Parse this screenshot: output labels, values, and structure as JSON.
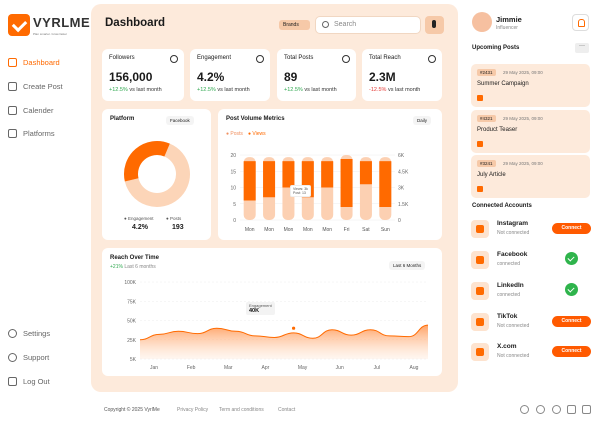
{
  "brand": {
    "name": "VYRLME",
    "tagline": "Plan smarter. Grow faster"
  },
  "nav": [
    {
      "label": "Dashboard",
      "active": true
    },
    {
      "label": "Create Post"
    },
    {
      "label": "Calender"
    },
    {
      "label": "Platforms"
    }
  ],
  "nav_bottom": [
    {
      "label": "Settings"
    },
    {
      "label": "Support"
    },
    {
      "label": "Log Out"
    }
  ],
  "header": {
    "title": "Dashboard",
    "brands_label": "Brands",
    "search_placeholder": "Search"
  },
  "stats": [
    {
      "label": "Followers",
      "value": "156,000",
      "delta": "+12.5%",
      "suffix": "vs last month",
      "icon": "users-icon"
    },
    {
      "label": "Engagement",
      "value": "4.2%",
      "delta": "+12.5%",
      "suffix": "vs last month",
      "icon": "heart-icon"
    },
    {
      "label": "Total Posts",
      "value": "89",
      "delta": "+12.5%",
      "suffix": "vs last month",
      "icon": "chat-icon"
    },
    {
      "label": "Total Reach",
      "value": "2.3M",
      "delta": "-12.5%",
      "suffix": "vs last month",
      "icon": "trophy-icon"
    }
  ],
  "platform": {
    "title": "Platform",
    "dropdown": "Facebook",
    "legend": [
      {
        "label": "Engagement",
        "value": "4.2%"
      },
      {
        "label": "Posts",
        "value": "193"
      }
    ]
  },
  "post_volume": {
    "title": "Post Volume Metrics",
    "dropdown": "Daily",
    "legend": [
      "Posts",
      "Views"
    ],
    "tooltip": [
      "Views: 3k",
      "Post: 13"
    ]
  },
  "reach": {
    "title": "Reach Over Time",
    "delta": "+21%",
    "subtitle": "Last 6 months",
    "dropdown": "Last 6 Months",
    "tooltip_label": "Engagement",
    "tooltip_value": "40K"
  },
  "chart_data": [
    {
      "type": "pie",
      "title": "Platform",
      "labels": [
        "Engagement",
        "Posts"
      ],
      "values": [
        65,
        35
      ],
      "colors": [
        "#fcd5b8",
        "#ff6a00"
      ]
    },
    {
      "type": "bar",
      "title": "Post Volume Metrics",
      "categories": [
        "Mon",
        "Mon",
        "Mon",
        "Mon",
        "Mon",
        "Fri",
        "Sat",
        "Sun"
      ],
      "series": [
        {
          "name": "Posts",
          "values": [
            14,
            13,
            10,
            13,
            10,
            16,
            9,
            16
          ]
        },
        {
          "name": "Views",
          "values": [
            5.8,
            5.8,
            5.8,
            5.8,
            5.8,
            6,
            5.8,
            5.8
          ]
        }
      ],
      "yticks_left": [
        "0",
        "5",
        "10",
        "15",
        "20"
      ],
      "yticks_right": [
        "0",
        "1.5K",
        "3K",
        "4.5K",
        "6K"
      ],
      "ylim": [
        0,
        20
      ],
      "ylim_right": [
        0,
        6000
      ]
    },
    {
      "type": "area",
      "title": "Reach Over Time",
      "x": [
        "Jan",
        "Feb",
        "Mar",
        "Apr",
        "May",
        "Jun",
        "Jul",
        "Aug"
      ],
      "yticks": [
        "5K",
        "25K",
        "50K",
        "75K",
        "100K"
      ],
      "curve_x": [
        0,
        0.5,
        1,
        1.5,
        2,
        2.5,
        3,
        3.5,
        4,
        4.5,
        5,
        5.5,
        6,
        6.5,
        7,
        7.5
      ],
      "curve_y": [
        25000,
        32000,
        36000,
        33000,
        40000,
        36000,
        30000,
        28000,
        34000,
        27000,
        38000,
        31000,
        38000,
        30000,
        29000,
        44000
      ],
      "ylim": [
        0,
        100000
      ]
    }
  ],
  "profile": {
    "name": "Jimmie",
    "role": "Influencer"
  },
  "upcoming": {
    "title": "Upcoming Posts",
    "items": [
      {
        "tag": "#2431",
        "date": "29 May 2025, 09:00",
        "title": "Summer Campaign"
      },
      {
        "tag": "#4321",
        "date": "29 May 2025, 09:00",
        "title": "Product Teaser"
      },
      {
        "tag": "#3241",
        "date": "29 May 2025, 09:00",
        "title": "July Article"
      }
    ]
  },
  "accounts": {
    "title": "Connected Accounts",
    "items": [
      {
        "name": "Instagram",
        "status": "Not connected",
        "action": "Connect",
        "connected": false
      },
      {
        "name": "Facebook",
        "status": "connected",
        "connected": true
      },
      {
        "name": "LinkedIn",
        "status": "connected",
        "connected": true
      },
      {
        "name": "TikTok",
        "status": "Not connected",
        "action": "Connect",
        "connected": false
      },
      {
        "name": "X.com",
        "status": "Not connected",
        "action": "Connect",
        "connected": false
      }
    ]
  },
  "footer": {
    "copyright": "Copyright © 2025 VyrlMe",
    "links": [
      "Privacy Policy",
      "Term and conditions",
      "Contact"
    ]
  },
  "colors": {
    "accent": "#ff6a00",
    "light": "#fcd5b8",
    "panel": "#fdeadb",
    "green": "#2fa84f",
    "red": "#e53935"
  }
}
